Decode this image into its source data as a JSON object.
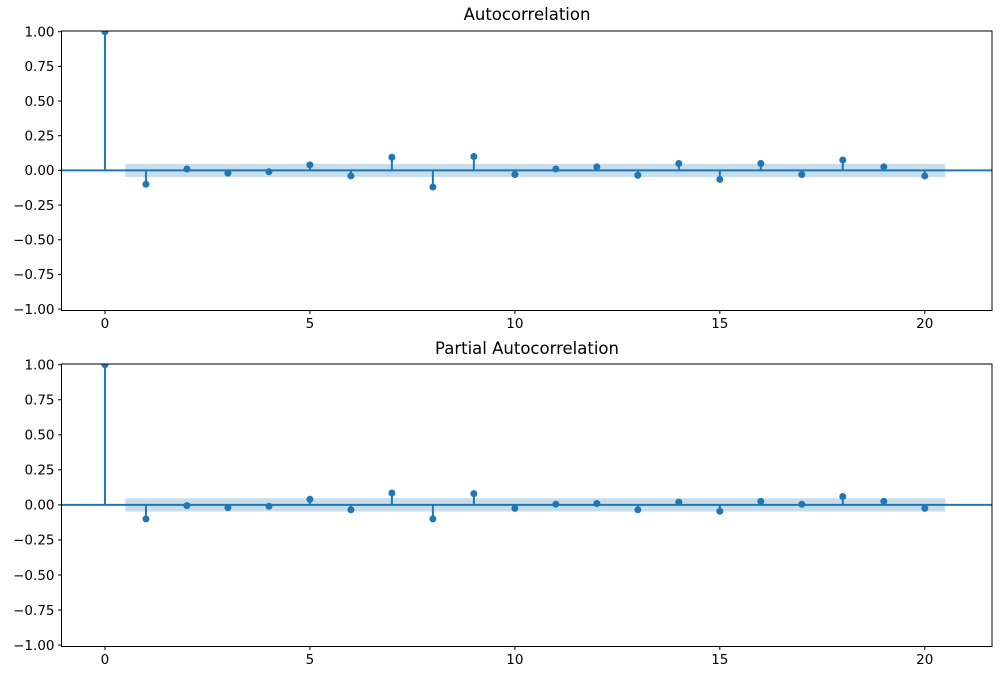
{
  "figure": {
    "background": "#ffffff",
    "accent_color": "#1f77b4",
    "confidence_band_color": "#1f77b4",
    "confidence_band_opacity": 0.25,
    "spine_color": "#000000",
    "tick_label_color": "#000000"
  },
  "chart_data": [
    {
      "type": "scatter",
      "style": "stem",
      "title": "Autocorrelation",
      "xlabel": "",
      "ylabel": "",
      "grid": false,
      "legend": "none",
      "x": [
        0,
        1,
        2,
        3,
        4,
        5,
        6,
        7,
        8,
        9,
        10,
        11,
        12,
        13,
        14,
        15,
        16,
        17,
        18,
        19,
        20
      ],
      "values": [
        1.0,
        -0.1,
        0.01,
        -0.02,
        -0.01,
        0.04,
        -0.04,
        0.095,
        -0.12,
        0.1,
        -0.03,
        0.01,
        0.025,
        -0.035,
        0.05,
        -0.065,
        0.05,
        -0.03,
        0.075,
        0.025,
        -0.04
      ],
      "confidence_band": {
        "x_start": 0.5,
        "x_end": 20.5,
        "half_width": 0.047,
        "centered_on": 0
      },
      "xlim": [
        -1.06,
        21.64
      ],
      "ylim": [
        -1.01,
        1.005
      ],
      "xticks": [
        0,
        5,
        10,
        15,
        20
      ],
      "xtick_labels": [
        "0",
        "5",
        "10",
        "15",
        "20"
      ],
      "yticks": [
        1.0,
        0.75,
        0.5,
        0.25,
        0.0,
        -0.25,
        -0.5,
        -0.75,
        -1.0
      ],
      "ytick_labels": [
        "1.00",
        "0.75",
        "0.50",
        "0.25",
        "0.00",
        "−0.25",
        "−0.50",
        "−0.75",
        "−1.00"
      ],
      "marker_color": "#1f77b4",
      "stem_color": "#1f77b4",
      "zero_line_color": "#1f77b4"
    },
    {
      "type": "scatter",
      "style": "stem",
      "title": "Partial Autocorrelation",
      "xlabel": "",
      "ylabel": "",
      "grid": false,
      "legend": "none",
      "x": [
        0,
        1,
        2,
        3,
        4,
        5,
        6,
        7,
        8,
        9,
        10,
        11,
        12,
        13,
        14,
        15,
        16,
        17,
        18,
        19,
        20
      ],
      "values": [
        1.0,
        -0.1,
        -0.005,
        -0.02,
        -0.01,
        0.04,
        -0.035,
        0.085,
        -0.1,
        0.08,
        -0.025,
        0.005,
        0.01,
        -0.035,
        0.02,
        -0.045,
        0.025,
        0.005,
        0.06,
        0.025,
        -0.025
      ],
      "confidence_band": {
        "x_start": 0.5,
        "x_end": 20.5,
        "half_width": 0.047,
        "centered_on": 0
      },
      "xlim": [
        -1.06,
        21.64
      ],
      "ylim": [
        -1.01,
        1.005
      ],
      "xticks": [
        0,
        5,
        10,
        15,
        20
      ],
      "xtick_labels": [
        "0",
        "5",
        "10",
        "15",
        "20"
      ],
      "yticks": [
        1.0,
        0.75,
        0.5,
        0.25,
        0.0,
        -0.25,
        -0.5,
        -0.75,
        -1.0
      ],
      "ytick_labels": [
        "1.00",
        "0.75",
        "0.50",
        "0.25",
        "0.00",
        "−0.25",
        "−0.50",
        "−0.75",
        "−1.00"
      ],
      "marker_color": "#1f77b4",
      "stem_color": "#1f77b4",
      "zero_line_color": "#1f77b4"
    }
  ]
}
